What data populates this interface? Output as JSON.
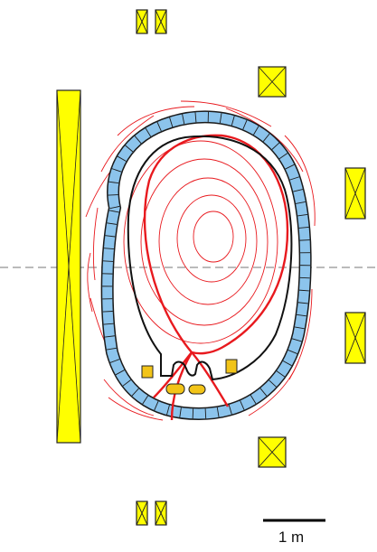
{
  "figure": {
    "description_type": "tokamak poloidal cross-section schematic",
    "colors": {
      "coil_fill": "#ffff00",
      "coil_stroke": "#222222",
      "vessel_fill": "#8cc4ec",
      "vessel_stroke": "#1a1a1a",
      "flux_line": "#e8191e",
      "separatrix": "#e8191e",
      "first_wall": "#111111",
      "midplane": "#777777",
      "divertor_coil": "#f2c418"
    },
    "scale_bar": {
      "label": "1 m"
    }
  }
}
